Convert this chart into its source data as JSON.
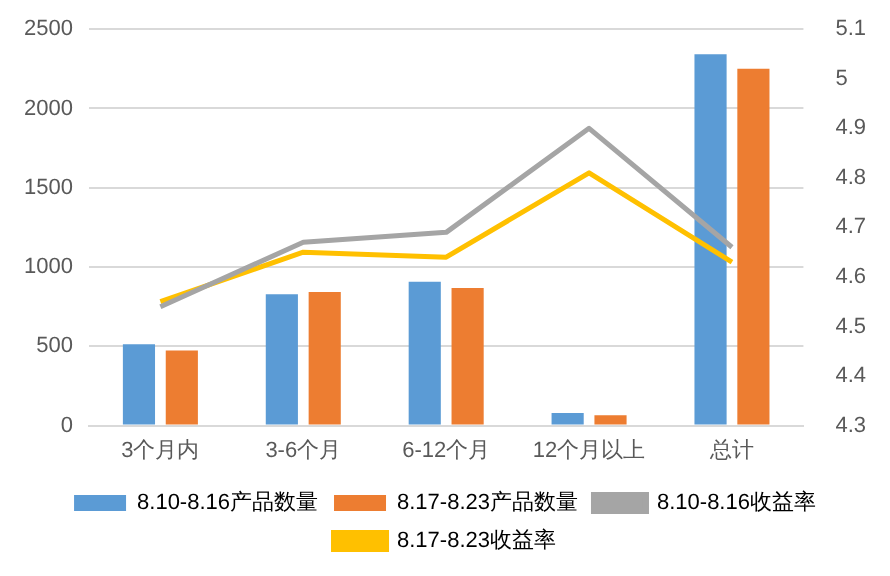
{
  "chart_data": {
    "type": "bar",
    "categories": [
      "3个月内",
      "3-6个月",
      "6-12个月",
      "12个月以上",
      "总计"
    ],
    "series": [
      {
        "name": "8.10-8.16产品数量",
        "color": "#5b9bd5",
        "values": [
          513,
          829,
          908,
          79,
          2342
        ]
      },
      {
        "name": "8.17-8.23产品数量",
        "color": "#ed7d31",
        "values": [
          474,
          842,
          868,
          66,
          2250
        ]
      },
      {
        "name": "8.10-8.16收益率",
        "type": "line",
        "axis": "y2",
        "color": "#a5a5a5",
        "values": [
          4.54,
          4.67,
          4.69,
          4.9,
          4.66
        ]
      },
      {
        "name": "8.17-8.23收益率",
        "type": "line",
        "axis": "y2",
        "color": "#ffc000",
        "values": [
          4.55,
          4.65,
          4.64,
          4.81,
          4.63
        ]
      }
    ],
    "ylim": [
      0,
      2500
    ],
    "yticks": [
      0,
      500,
      1000,
      1500,
      2000,
      2500
    ],
    "y2lim": [
      4.3,
      5.1
    ],
    "y2ticks": [
      4.3,
      4.4,
      4.5,
      4.6,
      4.7,
      4.8,
      4.9,
      5,
      5.1
    ],
    "grid": "y",
    "legend": "bottom",
    "marker": "none"
  }
}
